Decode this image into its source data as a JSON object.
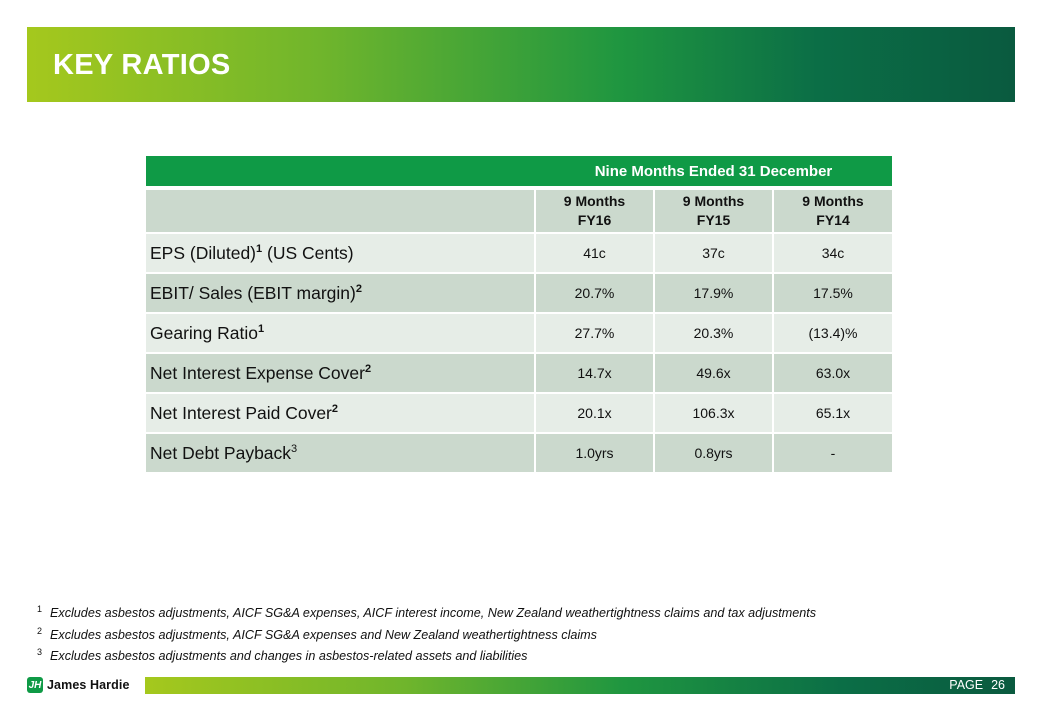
{
  "title": "KEY RATIOS",
  "table": {
    "banner": "Nine Months Ended 31 December",
    "columns": [
      {
        "line1": "9 Months",
        "line2": "FY16"
      },
      {
        "line1": "9 Months",
        "line2": "FY15"
      },
      {
        "line1": "9 Months",
        "line2": "FY14"
      }
    ],
    "rows": [
      {
        "label": "EPS (Diluted)",
        "sup": "1",
        "suffix": " (US Cents)",
        "values": [
          "41c",
          "37c",
          "34c"
        ]
      },
      {
        "label": "EBIT/ Sales (EBIT margin)",
        "sup": "2",
        "suffix": "",
        "values": [
          "20.7%",
          "17.9%",
          "17.5%"
        ]
      },
      {
        "label": "Gearing Ratio",
        "sup": "1",
        "suffix": "",
        "values": [
          "27.7%",
          "20.3%",
          "(13.4)%"
        ]
      },
      {
        "label": "Net Interest Expense Cover",
        "sup": "2",
        "suffix": "",
        "values": [
          "14.7x",
          "49.6x",
          "63.0x"
        ]
      },
      {
        "label": "Net Interest Paid Cover",
        "sup": "2",
        "suffix": "",
        "values": [
          "20.1x",
          "106.3x",
          "65.1x"
        ]
      },
      {
        "label": "Net Debt Payback",
        "sup": "3",
        "suffix": "",
        "values": [
          "1.0yrs",
          "0.8yrs",
          "-"
        ]
      }
    ]
  },
  "footnotes": [
    {
      "num": "1",
      "text": "Excludes asbestos adjustments, AICF SG&A expenses, AICF interest income, New Zealand weathertightness claims and tax adjustments"
    },
    {
      "num": "2",
      "text": "Excludes asbestos adjustments, AICF SG&A expenses and New Zealand weathertightness claims"
    },
    {
      "num": "3",
      "text": "Excludes asbestos adjustments and changes in asbestos-related assets and liabilities"
    }
  ],
  "footer": {
    "logo_mark": "JH",
    "logo_text": "James Hardie",
    "page_label": "PAGE",
    "page_number": "26"
  },
  "colors": {
    "brand_green": "#0f9a46",
    "header_row": "#cbd9cd",
    "light_row": "#e6ede7"
  }
}
